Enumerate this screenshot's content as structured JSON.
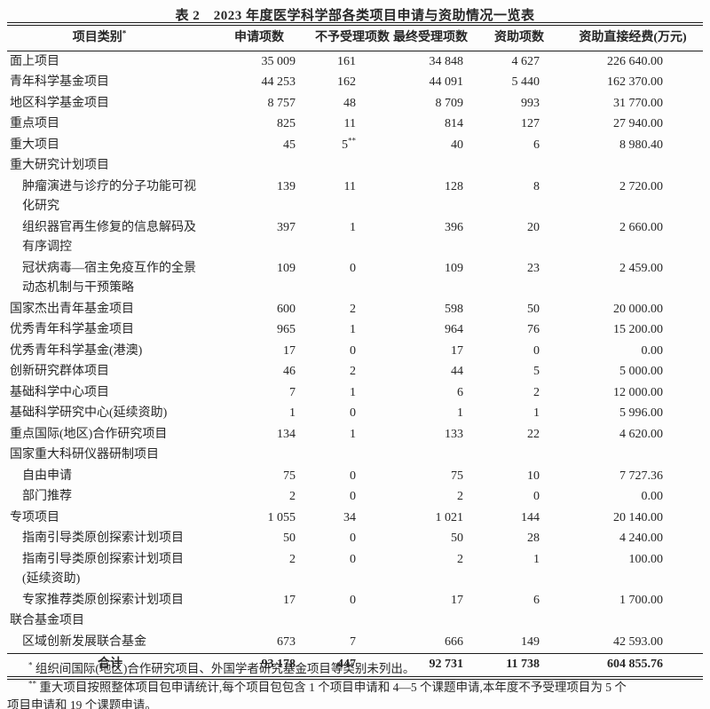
{
  "title": "表 2　2023 年度医学科学部各类项目申请与资助情况一览表",
  "table": {
    "columns": [
      {
        "label": "项目类别",
        "sup": "*",
        "name": "col-header-category"
      },
      {
        "label": "申请项数",
        "sup": "",
        "name": "col-header-applied-count"
      },
      {
        "label": "不予受理项数",
        "sup": "",
        "name": "col-header-not-accepted-count"
      },
      {
        "label": "最终受理项数",
        "sup": "",
        "name": "col-header-final-accepted-count"
      },
      {
        "label": "资助项数",
        "sup": "",
        "name": "col-header-funded-count"
      },
      {
        "label": "资助直接经费(万元)",
        "sup": "",
        "name": "col-header-direct-funding-10k-yuan"
      }
    ],
    "rows": [
      {
        "label": "面上项目",
        "indent": false,
        "group": false,
        "cells": [
          "35 009",
          "161",
          "34 848",
          "4 627",
          "226 640.00"
        ]
      },
      {
        "label": "青年科学基金项目",
        "indent": false,
        "group": false,
        "cells": [
          "44 253",
          "162",
          "44 091",
          "5 440",
          "162 370.00"
        ]
      },
      {
        "label": "地区科学基金项目",
        "indent": false,
        "group": false,
        "cells": [
          "8 757",
          "48",
          "8 709",
          "993",
          "31 770.00"
        ]
      },
      {
        "label": "重点项目",
        "indent": false,
        "group": false,
        "cells": [
          "825",
          "11",
          "814",
          "127",
          "27 940.00"
        ]
      },
      {
        "label": "重大项目",
        "indent": false,
        "group": false,
        "cells": [
          "45",
          "5**",
          "40",
          "6",
          "8 980.40"
        ]
      },
      {
        "label": "重大研究计划项目",
        "indent": false,
        "group": true,
        "cells": null
      },
      {
        "label": "肿瘤演进与诊疗的分子功能可视\n化研究",
        "indent": true,
        "group": false,
        "cells": [
          "139",
          "11",
          "128",
          "8",
          "2 720.00"
        ]
      },
      {
        "label": "组织器官再生修复的信息解码及\n有序调控",
        "indent": true,
        "group": false,
        "cells": [
          "397",
          "1",
          "396",
          "20",
          "2 660.00"
        ]
      },
      {
        "label": "冠状病毒—宿主免疫互作的全景\n动态机制与干预策略",
        "indent": true,
        "group": false,
        "cells": [
          "109",
          "0",
          "109",
          "23",
          "2 459.00"
        ]
      },
      {
        "label": "国家杰出青年基金项目",
        "indent": false,
        "group": false,
        "cells": [
          "600",
          "2",
          "598",
          "50",
          "20 000.00"
        ]
      },
      {
        "label": "优秀青年科学基金项目",
        "indent": false,
        "group": false,
        "cells": [
          "965",
          "1",
          "964",
          "76",
          "15 200.00"
        ]
      },
      {
        "label": "优秀青年科学基金(港澳)",
        "indent": false,
        "group": false,
        "cells": [
          "17",
          "0",
          "17",
          "0",
          "0.00"
        ]
      },
      {
        "label": "创新研究群体项目",
        "indent": false,
        "group": false,
        "cells": [
          "46",
          "2",
          "44",
          "5",
          "5 000.00"
        ]
      },
      {
        "label": "基础科学中心项目",
        "indent": false,
        "group": false,
        "cells": [
          "7",
          "1",
          "6",
          "2",
          "12 000.00"
        ]
      },
      {
        "label": "基础科学研究中心(延续资助)",
        "indent": false,
        "group": false,
        "cells": [
          "1",
          "0",
          "1",
          "1",
          "5 996.00"
        ]
      },
      {
        "label": "重点国际(地区)合作研究项目",
        "indent": false,
        "group": false,
        "cells": [
          "134",
          "1",
          "133",
          "22",
          "4 620.00"
        ]
      },
      {
        "label": "国家重大科研仪器研制项目",
        "indent": false,
        "group": true,
        "cells": null
      },
      {
        "label": "自由申请",
        "indent": true,
        "group": false,
        "cells": [
          "75",
          "0",
          "75",
          "10",
          "7 727.36"
        ]
      },
      {
        "label": "部门推荐",
        "indent": true,
        "group": false,
        "cells": [
          "2",
          "0",
          "2",
          "0",
          "0.00"
        ]
      },
      {
        "label": "专项项目",
        "indent": false,
        "group": false,
        "cells": [
          "1 055",
          "34",
          "1 021",
          "144",
          "20 140.00"
        ]
      },
      {
        "label": "指南引导类原创探索计划项目",
        "indent": true,
        "group": false,
        "cells": [
          "50",
          "0",
          "50",
          "28",
          "4 240.00"
        ]
      },
      {
        "label": "指南引导类原创探索计划项目\n(延续资助)",
        "indent": true,
        "group": false,
        "cells": [
          "2",
          "0",
          "2",
          "1",
          "100.00"
        ]
      },
      {
        "label": "专家推荐类原创探索计划项目",
        "indent": true,
        "group": false,
        "cells": [
          "17",
          "0",
          "17",
          "6",
          "1 700.00"
        ]
      },
      {
        "label": "联合基金项目",
        "indent": false,
        "group": true,
        "cells": null
      },
      {
        "label": "区域创新发展联合基金",
        "indent": true,
        "group": false,
        "cells": [
          "673",
          "7",
          "666",
          "149",
          "42 593.00"
        ]
      }
    ],
    "total": {
      "label": "合计",
      "cells": [
        "93 178",
        "447",
        "92 731",
        "11 738",
        "604 855.76"
      ]
    }
  },
  "footnotes": [
    {
      "marker": "*",
      "indent": true,
      "text": "组织间国际(地区)合作研究项目、外国学者研究基金项目等类别未列出。"
    },
    {
      "marker": "**",
      "indent": true,
      "text": "重大项目按照整体项目包申请统计,每个项目包包含 1 个项目申请和 4—5 个课题申请,本年度不予受理项目为 5 个"
    },
    {
      "marker": "",
      "indent": false,
      "text": "项目申请和 19 个课题申请。"
    }
  ]
}
